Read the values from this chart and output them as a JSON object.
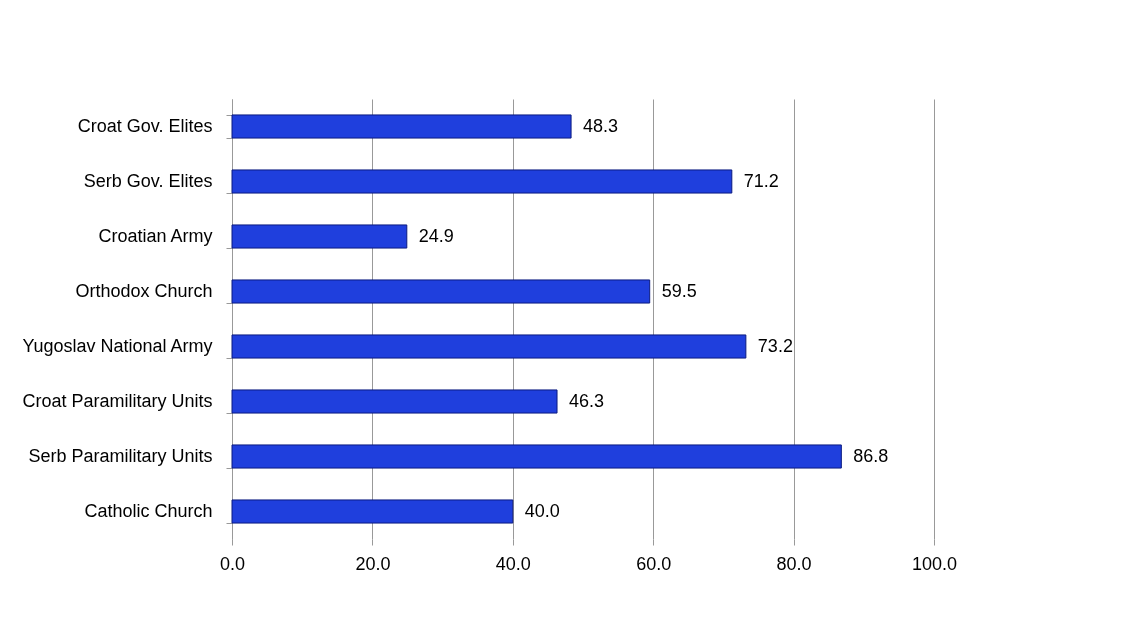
{
  "chart_data": {
    "type": "bar",
    "orientation": "horizontal",
    "categories": [
      "Croat Gov. Elites",
      "Serb Gov. Elites",
      "Croatian Army",
      "Orthodox Church",
      "Yugoslav National Army",
      "Croat Paramilitary Units",
      "Serb Paramilitary Units",
      "Catholic Church"
    ],
    "values": [
      48.3,
      71.2,
      24.9,
      59.5,
      73.2,
      46.3,
      86.8,
      40.0
    ],
    "value_labels": [
      "48.3",
      "71.2",
      "24.9",
      "59.5",
      "73.2",
      "46.3",
      "86.8",
      "40.0"
    ],
    "color": "#1f3fdd",
    "xlim": [
      0,
      100
    ],
    "xticks": [
      {
        "value": 0,
        "label": "0.0"
      },
      {
        "value": 20,
        "label": "20.0"
      },
      {
        "value": 40,
        "label": "40.0"
      },
      {
        "value": 60,
        "label": "60.0"
      },
      {
        "value": 80,
        "label": "80.0"
      },
      {
        "value": 100,
        "label": "100.0"
      }
    ],
    "grid": "x"
  }
}
